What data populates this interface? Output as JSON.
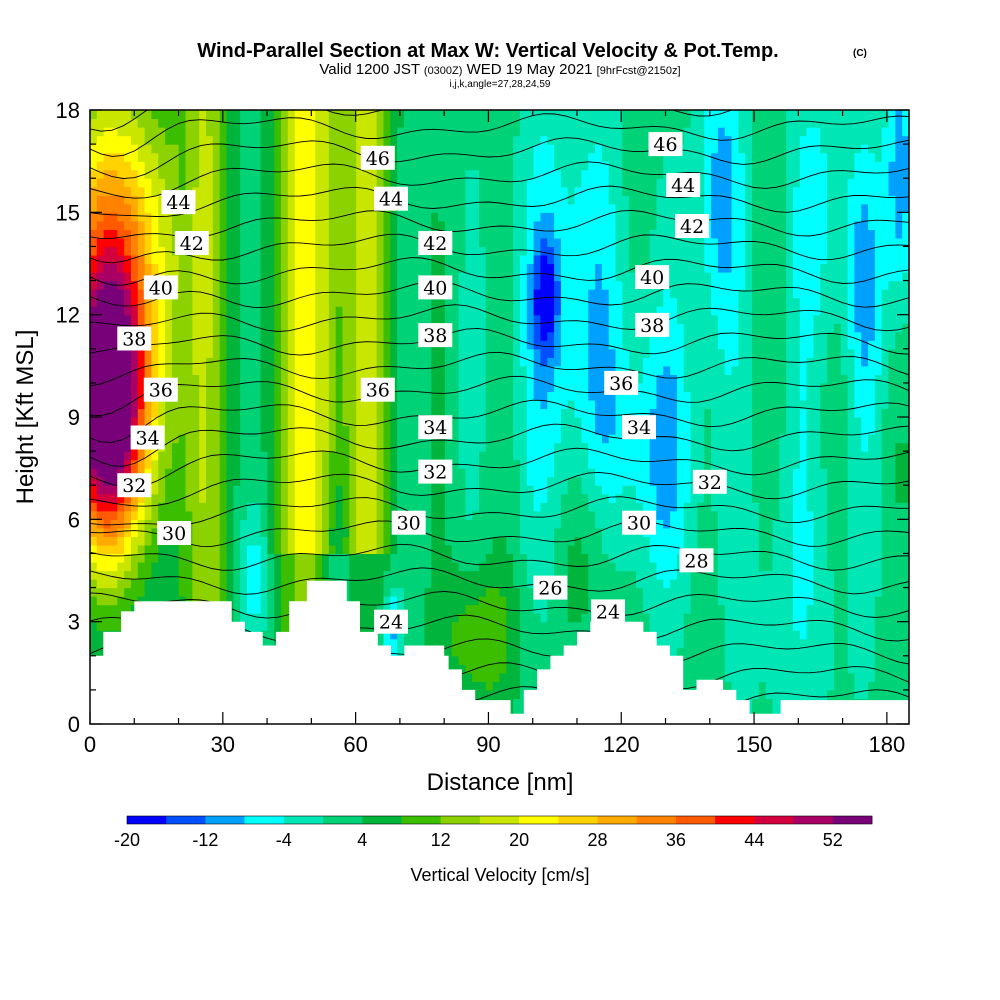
{
  "chart_data": {
    "type": "heatmap",
    "title": "Wind-Parallel Section at Max W: Vertical Velocity & Pot.Temp.",
    "title_mark": "(C)",
    "subtitle_parts": [
      "Valid 1200 JST",
      "(0300Z)",
      "WED 19 May 2021",
      "[9hrFcst@2150z]"
    ],
    "subtitle2": "i,j,k,angle=27,28,24,59",
    "xlabel": "Distance [nm]",
    "ylabel": "Height [Kft MSL]",
    "xlim": [
      0,
      185
    ],
    "ylim": [
      0,
      18
    ],
    "x_ticks": [
      "0",
      "30",
      "60",
      "90",
      "120",
      "150",
      "180"
    ],
    "y_ticks": [
      "0",
      "3",
      "6",
      "9",
      "12",
      "15",
      "18"
    ],
    "colorbar": {
      "label": "Vertical Velocity [cm/s]",
      "tick_labels": [
        "-20",
        "-12",
        "-4",
        "4",
        "12",
        "20",
        "28",
        "36",
        "44",
        "52"
      ],
      "levels": [
        -20,
        -16,
        -12,
        -8,
        -4,
        0,
        4,
        8,
        12,
        16,
        20,
        24,
        28,
        32,
        36,
        40,
        44,
        48,
        52,
        56
      ],
      "colors": [
        "#0000ff",
        "#0050ff",
        "#00a0ff",
        "#00ffff",
        "#00e6b4",
        "#00d278",
        "#00b43c",
        "#3cbe00",
        "#8cd200",
        "#c8e600",
        "#ffff00",
        "#ffd200",
        "#ffaa00",
        "#ff8200",
        "#ff5a00",
        "#ff0000",
        "#d2003c",
        "#aa0064",
        "#780078"
      ]
    },
    "contour_variable": "Potential temperature",
    "contour_labels": [
      {
        "text": "46",
        "x": 65,
        "y": 16.6
      },
      {
        "text": "44",
        "x": 68,
        "y": 15.4
      },
      {
        "text": "42",
        "x": 78,
        "y": 14.1
      },
      {
        "text": "40",
        "x": 78,
        "y": 12.8
      },
      {
        "text": "38",
        "x": 78,
        "y": 11.4
      },
      {
        "text": "36",
        "x": 65,
        "y": 9.8
      },
      {
        "text": "34",
        "x": 78,
        "y": 8.7
      },
      {
        "text": "32",
        "x": 78,
        "y": 7.4
      },
      {
        "text": "30",
        "x": 72,
        "y": 5.9
      },
      {
        "text": "28",
        "x": 137,
        "y": 4.8
      },
      {
        "text": "26",
        "x": 104,
        "y": 4.0
      },
      {
        "text": "24",
        "x": 68,
        "y": 3.0
      },
      {
        "text": "24",
        "x": 117,
        "y": 3.3
      },
      {
        "text": "46",
        "x": 130,
        "y": 17.0
      },
      {
        "text": "44",
        "x": 134,
        "y": 15.8
      },
      {
        "text": "42",
        "x": 136,
        "y": 14.6
      },
      {
        "text": "40",
        "x": 127,
        "y": 13.1
      },
      {
        "text": "38",
        "x": 127,
        "y": 11.7
      },
      {
        "text": "36",
        "x": 120,
        "y": 10.0
      },
      {
        "text": "34",
        "x": 124,
        "y": 8.7
      },
      {
        "text": "32",
        "x": 140,
        "y": 7.1
      },
      {
        "text": "30",
        "x": 124,
        "y": 5.9
      },
      {
        "text": "44",
        "x": 20,
        "y": 15.3
      },
      {
        "text": "42",
        "x": 23,
        "y": 14.1
      },
      {
        "text": "40",
        "x": 16,
        "y": 12.8
      },
      {
        "text": "38",
        "x": 10,
        "y": 11.3
      },
      {
        "text": "36",
        "x": 16,
        "y": 9.8
      },
      {
        "text": "34",
        "x": 13,
        "y": 8.4
      },
      {
        "text": "32",
        "x": 10,
        "y": 7.0
      },
      {
        "text": "30",
        "x": 19,
        "y": 5.6
      }
    ],
    "terrain": [
      [
        0,
        2
      ],
      [
        3,
        2
      ],
      [
        3,
        2.7
      ],
      [
        7,
        2.7
      ],
      [
        7,
        3.3
      ],
      [
        10,
        3.3
      ],
      [
        10,
        3.6
      ],
      [
        32,
        3.6
      ],
      [
        32,
        3.0
      ],
      [
        35,
        3.0
      ],
      [
        35,
        2.7
      ],
      [
        39,
        2.7
      ],
      [
        39,
        2.3
      ],
      [
        42,
        2.3
      ],
      [
        42,
        2.7
      ],
      [
        45,
        2.7
      ],
      [
        45,
        3.6
      ],
      [
        49,
        3.6
      ],
      [
        49,
        4.2
      ],
      [
        58,
        4.2
      ],
      [
        58,
        3.6
      ],
      [
        61,
        3.6
      ],
      [
        61,
        2.7
      ],
      [
        65,
        2.7
      ],
      [
        65,
        2.3
      ],
      [
        68,
        2.3
      ],
      [
        68,
        2.0
      ],
      [
        71,
        2.0
      ],
      [
        71,
        2.3
      ],
      [
        80,
        2.3
      ],
      [
        80,
        2.0
      ],
      [
        81,
        2.0
      ],
      [
        81,
        1.6
      ],
      [
        84,
        1.6
      ],
      [
        84,
        1.0
      ],
      [
        87,
        1.0
      ],
      [
        87,
        0.7
      ],
      [
        95,
        0.7
      ],
      [
        95,
        0.3
      ],
      [
        98,
        0.3
      ],
      [
        98,
        1.0
      ],
      [
        101,
        1.0
      ],
      [
        101,
        1.6
      ],
      [
        104,
        1.6
      ],
      [
        104,
        2.0
      ],
      [
        107,
        2.0
      ],
      [
        107,
        2.3
      ],
      [
        110,
        2.3
      ],
      [
        110,
        2.7
      ],
      [
        113,
        2.7
      ],
      [
        113,
        3.0
      ],
      [
        125,
        3.0
      ],
      [
        125,
        2.7
      ],
      [
        128,
        2.7
      ],
      [
        128,
        2.3
      ],
      [
        131,
        2.3
      ],
      [
        131,
        2.0
      ],
      [
        134,
        2.0
      ],
      [
        134,
        1.6
      ],
      [
        134,
        1.0
      ],
      [
        137,
        1.0
      ],
      [
        137,
        1.3
      ],
      [
        143,
        1.3
      ],
      [
        143,
        1.0
      ],
      [
        146,
        1.0
      ],
      [
        146,
        0.7
      ],
      [
        149,
        0.7
      ],
      [
        149,
        0.3
      ],
      [
        156,
        0.3
      ],
      [
        156,
        0.7
      ],
      [
        185,
        0.7
      ]
    ]
  }
}
